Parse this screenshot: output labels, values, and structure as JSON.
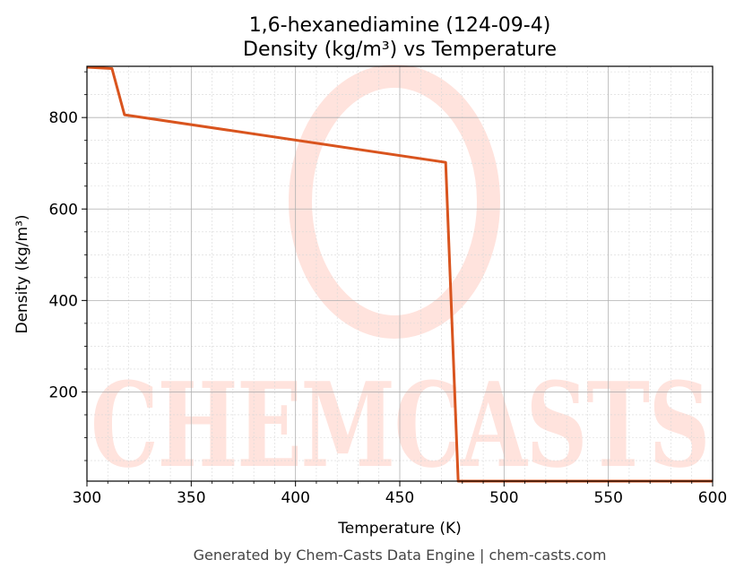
{
  "chart_data": {
    "type": "line",
    "title": "1,6-hexanediamine (124-09-4)",
    "subtitle": "Density (kg/m³) vs Temperature",
    "xlabel": "Temperature (K)",
    "ylabel": "Density (kg/m³)",
    "xlim": [
      300,
      600
    ],
    "ylim": [
      5,
      912
    ],
    "x_ticks": [
      300,
      350,
      400,
      450,
      500,
      550,
      600
    ],
    "y_ticks": [
      200,
      400,
      600,
      800
    ],
    "grid": true,
    "legend": "none",
    "series": [
      {
        "color": "#d9541e",
        "x": [
          300,
          312,
          318,
          472,
          478,
          600
        ],
        "y": [
          910,
          907,
          806,
          702,
          5,
          5
        ]
      }
    ]
  },
  "watermark": {
    "text": "CHEMCASTS",
    "color": "#ffe3dd"
  },
  "footer": "Generated by Chem-Casts Data Engine | chem-casts.com"
}
